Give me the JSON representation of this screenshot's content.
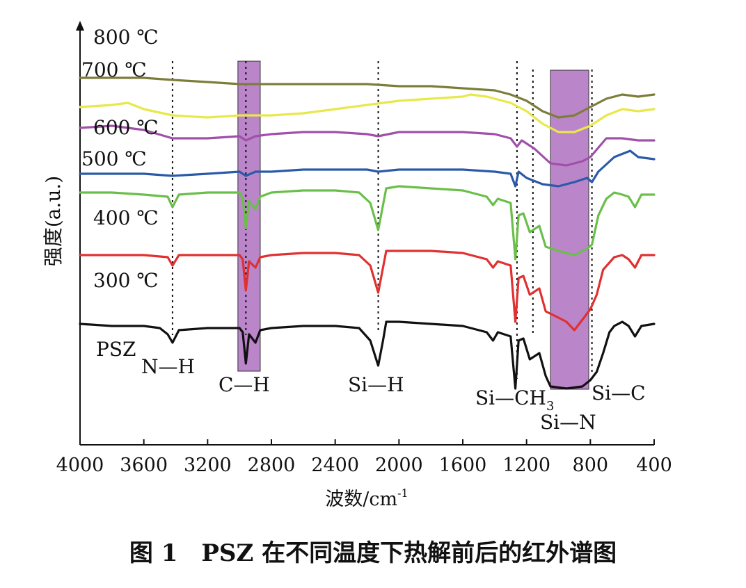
{
  "caption": "图 1　PSZ 在不同温度下热解前后的红外谱图",
  "chart_data": {
    "type": "line",
    "title": "",
    "xlabel": "波数/cm-1",
    "xlabel_main": "波数/cm",
    "xlabel_sup": "-1",
    "ylabel": "强度(a.u.)",
    "xlim": [
      4000,
      400
    ],
    "x_reversed": true,
    "x_ticks": [
      4000,
      3600,
      3200,
      2800,
      2400,
      2000,
      1600,
      1200,
      800,
      400
    ],
    "y_ticks_shown": false,
    "grid": false,
    "bands": [
      {
        "label": "C—H",
        "from": 3010,
        "to": 2870,
        "color": "#a45cb8"
      },
      {
        "label": "Si—N",
        "from": 1050,
        "to": 810,
        "color": "#a45cb8"
      }
    ],
    "vertical_markers": [
      {
        "label": "N—H",
        "x": 3420
      },
      {
        "label": "C—H",
        "x": 2960
      },
      {
        "label": "Si—H",
        "x": 2130
      },
      {
        "label": "Si—CH3",
        "x": 1260
      },
      {
        "label": "Si—N",
        "x": 1160
      },
      {
        "label": "Si—C",
        "x": 790
      }
    ],
    "peak_labels": [
      {
        "text": "N—H"
      },
      {
        "text": "C—H"
      },
      {
        "text": "Si—H"
      },
      {
        "text": "Si—CH",
        "sub": "3"
      },
      {
        "text": "Si—N"
      },
      {
        "text": "Si—C"
      }
    ],
    "series": [
      {
        "name": "800 ℃",
        "color": "#7d7d3a",
        "points": [
          [
            4000,
            88
          ],
          [
            3800,
            88
          ],
          [
            3600,
            88
          ],
          [
            3420,
            87.5
          ],
          [
            3200,
            87
          ],
          [
            3000,
            86.5
          ],
          [
            2800,
            86.5
          ],
          [
            2600,
            86.5
          ],
          [
            2400,
            86.5
          ],
          [
            2200,
            86.5
          ],
          [
            2000,
            86
          ],
          [
            1800,
            86
          ],
          [
            1600,
            85.5
          ],
          [
            1400,
            85
          ],
          [
            1300,
            84
          ],
          [
            1200,
            82.5
          ],
          [
            1100,
            80
          ],
          [
            1000,
            78.5
          ],
          [
            900,
            79
          ],
          [
            800,
            81
          ],
          [
            700,
            83
          ],
          [
            600,
            84
          ],
          [
            500,
            83.5
          ],
          [
            400,
            84
          ]
        ]
      },
      {
        "name": "700 ℃",
        "color": "#e8e84a",
        "points": [
          [
            4000,
            81
          ],
          [
            3800,
            81.5
          ],
          [
            3700,
            82
          ],
          [
            3600,
            80.5
          ],
          [
            3420,
            79
          ],
          [
            3200,
            78.5
          ],
          [
            3000,
            79
          ],
          [
            2800,
            79
          ],
          [
            2600,
            79.5
          ],
          [
            2400,
            80.5
          ],
          [
            2200,
            81.5
          ],
          [
            2000,
            82.5
          ],
          [
            1800,
            83
          ],
          [
            1600,
            83.5
          ],
          [
            1550,
            84
          ],
          [
            1450,
            83.5
          ],
          [
            1300,
            82
          ],
          [
            1200,
            80
          ],
          [
            1100,
            77
          ],
          [
            1000,
            75
          ],
          [
            900,
            75
          ],
          [
            800,
            76.5
          ],
          [
            700,
            79
          ],
          [
            600,
            80.5
          ],
          [
            500,
            80
          ],
          [
            400,
            80.5
          ]
        ]
      },
      {
        "name": "600 ℃",
        "color": "#a050a8",
        "points": [
          [
            4000,
            76
          ],
          [
            3800,
            76.5
          ],
          [
            3600,
            75.5
          ],
          [
            3420,
            73.5
          ],
          [
            3200,
            73.5
          ],
          [
            3000,
            74
          ],
          [
            2960,
            73
          ],
          [
            2900,
            74
          ],
          [
            2800,
            74.5
          ],
          [
            2600,
            75
          ],
          [
            2400,
            75
          ],
          [
            2200,
            74.5
          ],
          [
            2130,
            74
          ],
          [
            2000,
            75
          ],
          [
            1800,
            75
          ],
          [
            1600,
            75
          ],
          [
            1400,
            74.5
          ],
          [
            1300,
            73.5
          ],
          [
            1260,
            71.5
          ],
          [
            1230,
            73
          ],
          [
            1150,
            71
          ],
          [
            1050,
            67.5
          ],
          [
            950,
            67
          ],
          [
            850,
            68
          ],
          [
            800,
            69
          ],
          [
            700,
            73.5
          ],
          [
            600,
            73.5
          ],
          [
            500,
            73
          ],
          [
            400,
            73
          ]
        ]
      },
      {
        "name": "500 ℃",
        "color": "#2a5aa8",
        "points": [
          [
            4000,
            65
          ],
          [
            3800,
            65
          ],
          [
            3600,
            65
          ],
          [
            3420,
            64.5
          ],
          [
            3200,
            65
          ],
          [
            3000,
            65.5
          ],
          [
            2960,
            64.5
          ],
          [
            2900,
            65.5
          ],
          [
            2800,
            65.5
          ],
          [
            2600,
            66
          ],
          [
            2400,
            66
          ],
          [
            2200,
            66
          ],
          [
            2130,
            65.5
          ],
          [
            2000,
            66
          ],
          [
            1800,
            66
          ],
          [
            1600,
            66
          ],
          [
            1400,
            65.5
          ],
          [
            1300,
            65
          ],
          [
            1270,
            62
          ],
          [
            1250,
            65.5
          ],
          [
            1200,
            64
          ],
          [
            1100,
            62.5
          ],
          [
            1000,
            62
          ],
          [
            900,
            63
          ],
          [
            820,
            64
          ],
          [
            790,
            63
          ],
          [
            750,
            65.5
          ],
          [
            650,
            69
          ],
          [
            550,
            70.5
          ],
          [
            500,
            69
          ],
          [
            400,
            68.5
          ]
        ]
      },
      {
        "name": "400 ℃",
        "color": "#6abf4a",
        "points": [
          [
            4000,
            60.5
          ],
          [
            3800,
            60.5
          ],
          [
            3600,
            60
          ],
          [
            3450,
            59.5
          ],
          [
            3420,
            57
          ],
          [
            3380,
            60
          ],
          [
            3200,
            60.5
          ],
          [
            3000,
            60.5
          ],
          [
            2980,
            59
          ],
          [
            2960,
            52
          ],
          [
            2940,
            58.5
          ],
          [
            2900,
            56.5
          ],
          [
            2870,
            59.5
          ],
          [
            2800,
            60.5
          ],
          [
            2600,
            61
          ],
          [
            2400,
            61
          ],
          [
            2250,
            60.5
          ],
          [
            2180,
            58
          ],
          [
            2130,
            51.5
          ],
          [
            2100,
            57.5
          ],
          [
            2080,
            61.5
          ],
          [
            2000,
            62
          ],
          [
            1800,
            61.5
          ],
          [
            1600,
            61
          ],
          [
            1450,
            59.5
          ],
          [
            1410,
            57.5
          ],
          [
            1380,
            59
          ],
          [
            1300,
            58
          ],
          [
            1270,
            44.5
          ],
          [
            1250,
            55
          ],
          [
            1220,
            55.5
          ],
          [
            1180,
            51
          ],
          [
            1120,
            52.5
          ],
          [
            1080,
            47.5
          ],
          [
            1000,
            46.5
          ],
          [
            900,
            45.5
          ],
          [
            820,
            47
          ],
          [
            790,
            48
          ],
          [
            750,
            55
          ],
          [
            700,
            59
          ],
          [
            650,
            60.5
          ],
          [
            600,
            60
          ],
          [
            560,
            59.5
          ],
          [
            520,
            57
          ],
          [
            480,
            60
          ],
          [
            400,
            60
          ]
        ]
      },
      {
        "name": "300 ℃",
        "color": "#e03030",
        "points": [
          [
            4000,
            45.5
          ],
          [
            3800,
            45.5
          ],
          [
            3600,
            45.5
          ],
          [
            3450,
            45
          ],
          [
            3420,
            43
          ],
          [
            3380,
            45.5
          ],
          [
            3200,
            45.5
          ],
          [
            3000,
            45.5
          ],
          [
            2980,
            44.5
          ],
          [
            2960,
            37
          ],
          [
            2940,
            44
          ],
          [
            2900,
            42.5
          ],
          [
            2870,
            45
          ],
          [
            2800,
            45.5
          ],
          [
            2600,
            46
          ],
          [
            2400,
            46
          ],
          [
            2250,
            45.5
          ],
          [
            2180,
            43
          ],
          [
            2130,
            36.5
          ],
          [
            2100,
            42.5
          ],
          [
            2080,
            46.5
          ],
          [
            2000,
            46.5
          ],
          [
            1800,
            46.5
          ],
          [
            1600,
            46
          ],
          [
            1450,
            44.5
          ],
          [
            1410,
            42.5
          ],
          [
            1380,
            44
          ],
          [
            1300,
            43
          ],
          [
            1270,
            29.5
          ],
          [
            1250,
            40
          ],
          [
            1220,
            40.5
          ],
          [
            1180,
            36
          ],
          [
            1120,
            37.5
          ],
          [
            1080,
            32
          ],
          [
            1000,
            30.5
          ],
          [
            950,
            29.5
          ],
          [
            900,
            27.5
          ],
          [
            850,
            30
          ],
          [
            800,
            32.5
          ],
          [
            760,
            36
          ],
          [
            720,
            42
          ],
          [
            650,
            45
          ],
          [
            600,
            45.5
          ],
          [
            560,
            44.5
          ],
          [
            520,
            42.5
          ],
          [
            480,
            45.5
          ],
          [
            400,
            45.5
          ]
        ]
      },
      {
        "name": "PSZ",
        "color": "#111111",
        "points": [
          [
            4000,
            29
          ],
          [
            3800,
            28.5
          ],
          [
            3600,
            28.5
          ],
          [
            3500,
            28
          ],
          [
            3450,
            26.5
          ],
          [
            3420,
            24.5
          ],
          [
            3380,
            27.5
          ],
          [
            3200,
            28
          ],
          [
            3000,
            28
          ],
          [
            2980,
            27
          ],
          [
            2960,
            19.5
          ],
          [
            2940,
            26.5
          ],
          [
            2900,
            24.5
          ],
          [
            2870,
            27.5
          ],
          [
            2800,
            28
          ],
          [
            2600,
            28.5
          ],
          [
            2400,
            28.5
          ],
          [
            2250,
            28
          ],
          [
            2180,
            25
          ],
          [
            2130,
            19
          ],
          [
            2100,
            25
          ],
          [
            2080,
            29.5
          ],
          [
            2000,
            29.5
          ],
          [
            1800,
            29
          ],
          [
            1600,
            28.5
          ],
          [
            1450,
            27
          ],
          [
            1410,
            25
          ],
          [
            1380,
            27
          ],
          [
            1300,
            26
          ],
          [
            1270,
            13.5
          ],
          [
            1250,
            25
          ],
          [
            1220,
            25.5
          ],
          [
            1180,
            20.5
          ],
          [
            1120,
            22
          ],
          [
            1080,
            16.5
          ],
          [
            1050,
            14
          ],
          [
            950,
            13.5
          ],
          [
            850,
            14
          ],
          [
            800,
            15.5
          ],
          [
            760,
            17.5
          ],
          [
            720,
            22
          ],
          [
            680,
            27
          ],
          [
            650,
            28.5
          ],
          [
            600,
            29.5
          ],
          [
            560,
            28.5
          ],
          [
            520,
            26
          ],
          [
            480,
            28.5
          ],
          [
            400,
            29
          ]
        ]
      }
    ]
  }
}
